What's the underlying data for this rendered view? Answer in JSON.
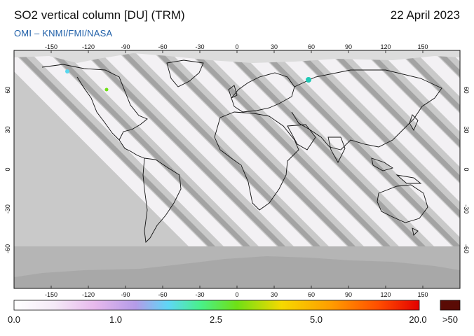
{
  "header": {
    "title": "SO2 vertical column [DU] (TRM)",
    "date": "22 April 2023",
    "credit": "OMI  –  KNMI/FMI/NASA"
  },
  "map": {
    "lon_ticks": [
      "-150",
      "-120",
      "-90",
      "-60",
      "-30",
      "0",
      "30",
      "60",
      "90",
      "120",
      "150"
    ],
    "lat_ticks": [
      "60",
      "30",
      "0",
      "-30",
      "-60"
    ],
    "swath_color": "#c9c9c9",
    "gap_color": "#a3a3a3",
    "polar_fill": "#b5b5b5",
    "hotspot_color": "#22c9b6"
  },
  "colorbar": {
    "labels": [
      "0.0",
      "1.0",
      "2.5",
      "5.0",
      "20.0"
    ],
    "overflow_label": ">50",
    "overflow_color": "#5a0b05",
    "stops": [
      "#ffffff",
      "#f4e9f7",
      "#e7b8ec",
      "#b49be8",
      "#5fd6f6",
      "#49f08a",
      "#6fe015",
      "#f5d900",
      "#ff9e00",
      "#ff4d00",
      "#e30000"
    ]
  }
}
